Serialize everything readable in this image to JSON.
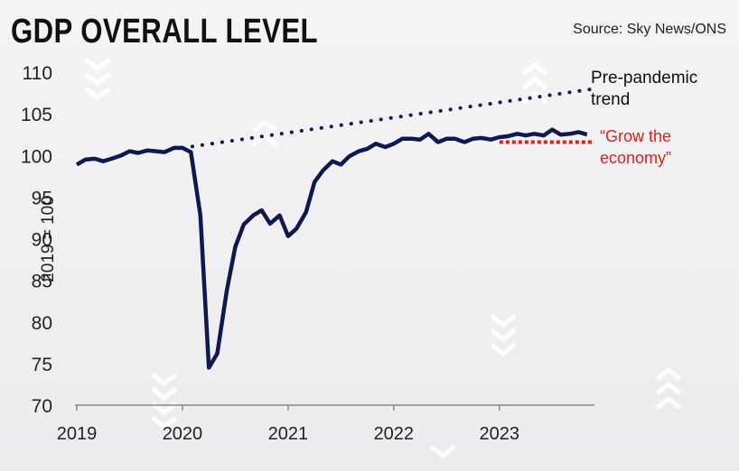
{
  "header": {
    "title": "GDP OVERALL LEVEL",
    "source": "Source: Sky News/ONS"
  },
  "colors": {
    "line": "#0e1a4f",
    "target": "#e3201b",
    "axis": "#888888",
    "chevron": "#ffffff"
  },
  "chart_data": {
    "type": "line",
    "title": "GDP OVERALL LEVEL",
    "ylabel": "2019 = 100",
    "xlabel": "",
    "ylim": [
      70,
      110
    ],
    "xlim": [
      2019,
      2023.9
    ],
    "yticks": [
      70,
      75,
      80,
      85,
      90,
      95,
      100,
      105,
      110
    ],
    "xticks": [
      2019,
      2020,
      2021,
      2022,
      2023
    ],
    "grid": false,
    "series": [
      {
        "name": "",
        "style": "solid",
        "x": [
          2019.0,
          2019.08,
          2019.17,
          2019.25,
          2019.33,
          2019.42,
          2019.5,
          2019.58,
          2019.67,
          2019.75,
          2019.83,
          2019.92,
          2020.0,
          2020.08,
          2020.17,
          2020.25,
          2020.33,
          2020.42,
          2020.5,
          2020.58,
          2020.67,
          2020.75,
          2020.83,
          2020.92,
          2021.0,
          2021.08,
          2021.17,
          2021.25,
          2021.33,
          2021.42,
          2021.5,
          2021.58,
          2021.67,
          2021.75,
          2021.83,
          2021.92,
          2022.0,
          2022.08,
          2022.17,
          2022.25,
          2022.33,
          2022.42,
          2022.5,
          2022.58,
          2022.67,
          2022.75,
          2022.83,
          2022.92,
          2023.0,
          2023.08,
          2023.17,
          2023.25,
          2023.33,
          2023.42,
          2023.5,
          2023.58,
          2023.67,
          2023.75,
          2023.83
        ],
        "y": [
          98.9,
          99.5,
          99.6,
          99.3,
          99.6,
          100.0,
          100.5,
          100.3,
          100.6,
          100.5,
          100.4,
          100.9,
          100.9,
          100.4,
          92.8,
          74.5,
          76.2,
          83.8,
          89.0,
          91.7,
          92.8,
          93.4,
          91.8,
          92.8,
          90.3,
          91.2,
          93.2,
          96.8,
          98.2,
          99.3,
          98.9,
          99.9,
          100.5,
          100.8,
          101.4,
          101.0,
          101.4,
          102.0,
          102.0,
          101.9,
          102.6,
          101.6,
          102.0,
          102.0,
          101.6,
          102.0,
          102.1,
          101.9,
          102.2,
          102.3,
          102.6,
          102.4,
          102.6,
          102.4,
          103.1,
          102.5,
          102.6,
          102.8,
          102.5
        ]
      },
      {
        "name": "Pre-pandemic trend",
        "style": "dotted",
        "x": [
          2020.0,
          2023.9
        ],
        "y": [
          100.9,
          108.0
        ]
      },
      {
        "name": "“Grow the economy”",
        "style": "dashed",
        "x": [
          2023.0,
          2023.9
        ],
        "y": [
          101.6,
          101.6
        ]
      }
    ],
    "annotations": {
      "trend_line1": "Pre-pandemic",
      "trend_line2": "trend",
      "target_line1": "“Grow the",
      "target_line2": "economy”"
    }
  }
}
